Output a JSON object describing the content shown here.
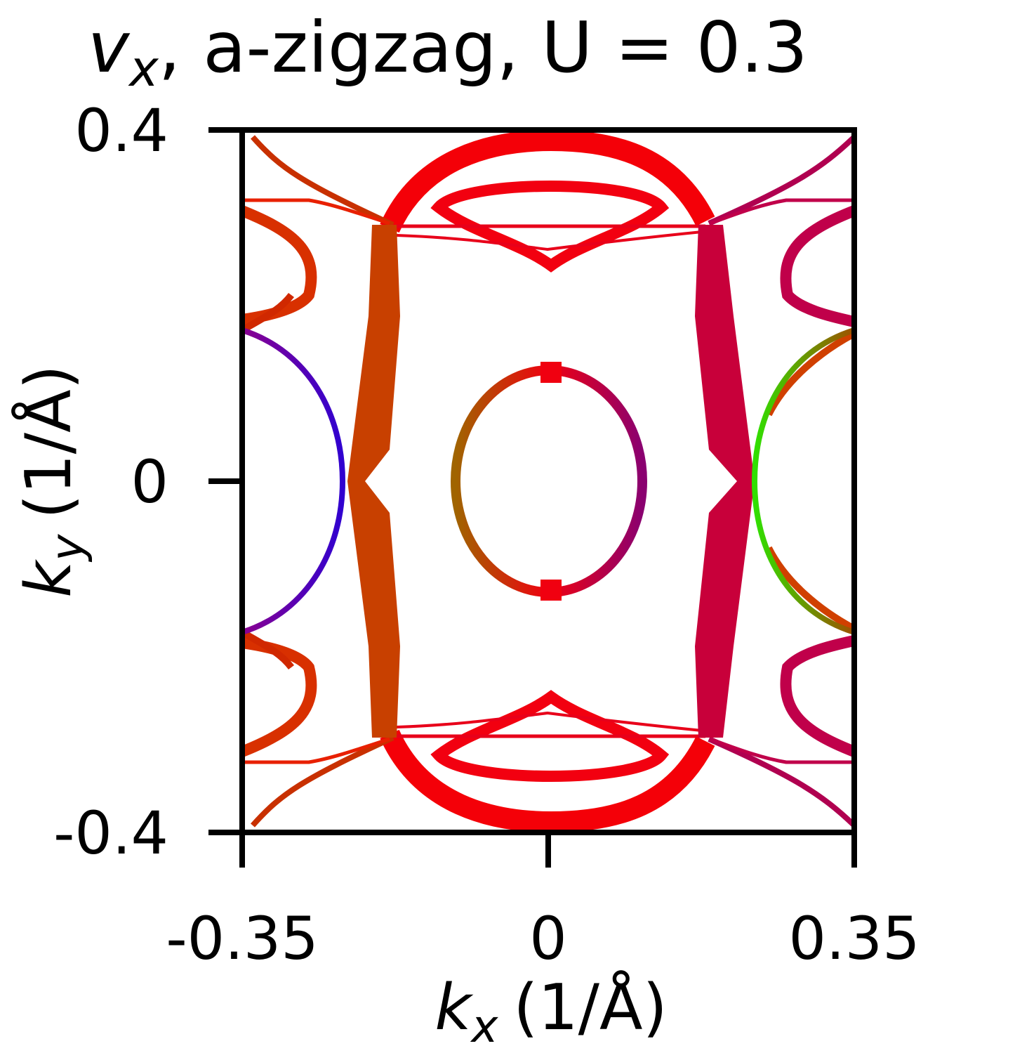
{
  "chart_data": {
    "type": "contour",
    "title": {
      "symbol": "v",
      "subscript": "x",
      "text": ", a-zigzag, U = 0.3"
    },
    "x_label": {
      "symbol": "k",
      "subscript": "x",
      "text": "(1/Å)"
    },
    "y_label": {
      "symbol": "k",
      "subscript": "y",
      "text": "(1/Å)"
    },
    "xlim": [
      -0.35,
      0.35
    ],
    "ylim": [
      -0.4,
      0.4
    ],
    "xticks": [
      -0.35,
      0,
      0.35
    ],
    "yticks": [
      -0.4,
      0,
      0.4
    ]
  }
}
